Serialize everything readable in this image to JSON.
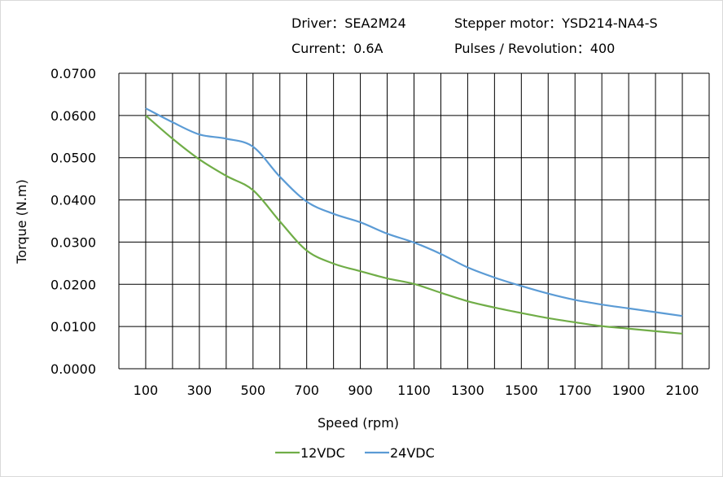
{
  "header": {
    "driver": "Driver：SEA2M24",
    "motor": "Stepper motor：YSD214-NA4-S",
    "current": "Current：0.6A",
    "pulses": "Pulses / Revolution：400"
  },
  "chart_data": {
    "type": "line",
    "title": "",
    "xlabel": "Speed (rpm)",
    "ylabel": "Torque (N.m)",
    "xlim": [
      0,
      2200
    ],
    "ylim": [
      0,
      0.07
    ],
    "grid": true,
    "legend_position": "bottom",
    "x_ticks": [
      "100",
      "300",
      "500",
      "700",
      "900",
      "1100",
      "1300",
      "1500",
      "1700",
      "1900",
      "2100"
    ],
    "y_ticks": [
      "0.0000",
      "0.0100",
      "0.0200",
      "0.0300",
      "0.0400",
      "0.0500",
      "0.0600",
      "0.0700"
    ],
    "x": [
      100,
      200,
      300,
      400,
      500,
      600,
      700,
      800,
      900,
      1000,
      1100,
      1200,
      1300,
      1400,
      1500,
      1600,
      1700,
      1800,
      1900,
      2000,
      2100
    ],
    "series": [
      {
        "name": "12VDC",
        "color": "#70ad47",
        "values": [
          0.06,
          0.0545,
          0.0496,
          0.0457,
          0.0423,
          0.0349,
          0.028,
          0.0249,
          0.0231,
          0.0214,
          0.0201,
          0.018,
          0.016,
          0.0145,
          0.0132,
          0.012,
          0.011,
          0.0101,
          0.0095,
          0.0089,
          0.0083
        ]
      },
      {
        "name": "24VDC",
        "color": "#5b9bd5",
        "values": [
          0.0617,
          0.0584,
          0.0555,
          0.0545,
          0.0526,
          0.0455,
          0.0396,
          0.0367,
          0.0347,
          0.032,
          0.0299,
          0.0272,
          0.024,
          0.0216,
          0.0196,
          0.0178,
          0.0163,
          0.0152,
          0.0143,
          0.0134,
          0.0125
        ]
      }
    ]
  }
}
